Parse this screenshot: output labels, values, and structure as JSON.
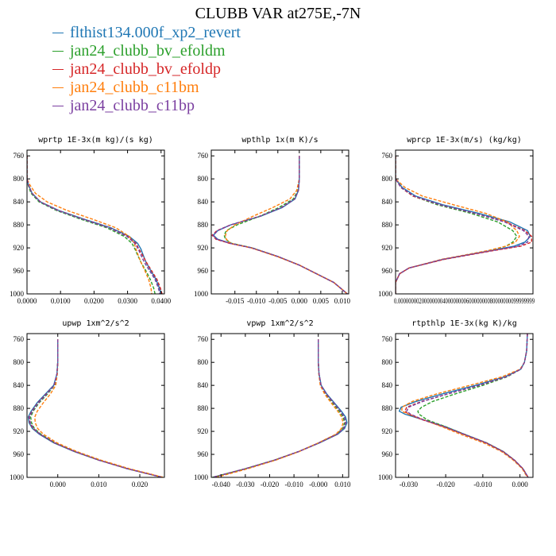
{
  "title": "CLUBB VAR at275E,-7N",
  "legend": [
    {
      "label": "flthist134.000f_xp2_revert",
      "color": "#1f77b4",
      "dash": "solid"
    },
    {
      "label": "jan24_clubb_bv_efoldm",
      "color": "#2ca02c",
      "dash": "dash"
    },
    {
      "label": "jan24_clubb_bv_efoldp",
      "color": "#d62728",
      "dash": "dash"
    },
    {
      "label": "jan24_clubb_c11bm",
      "color": "#ff7f0e",
      "dash": "dash"
    },
    {
      "label": "jan24_clubb_c11bp",
      "color": "#7b3fa0",
      "dash": "dash"
    }
  ],
  "chart_data": [
    {
      "type": "line",
      "title": "wprtp  1E-3x(m kg)/(s kg)",
      "xlim": [
        0,
        0.041
      ],
      "ylim": [
        1000,
        750
      ],
      "xticks": [
        "0.0000",
        "0.0100",
        "0.0200",
        "0.0300",
        "0.0400"
      ],
      "xtick_values": [
        0,
        0.01,
        0.02,
        0.03,
        0.04
      ],
      "yticks": [
        760,
        800,
        840,
        880,
        920,
        960,
        1000
      ],
      "y": [
        760,
        800,
        810,
        825,
        840,
        855,
        870,
        885,
        900,
        912,
        922,
        930,
        945,
        960,
        975,
        990,
        1000
      ],
      "series": [
        {
          "values": [
            0,
            0,
            0.0004,
            0.0015,
            0.004,
            0.0095,
            0.017,
            0.025,
            0.0305,
            0.033,
            0.034,
            0.0345,
            0.0355,
            0.037,
            0.0385,
            0.0395,
            0.04
          ]
        },
        {
          "values": [
            0,
            0,
            0.0003,
            0.0012,
            0.0036,
            0.0088,
            0.016,
            0.0238,
            0.029,
            0.0313,
            0.0322,
            0.0328,
            0.034,
            0.0355,
            0.0368,
            0.0378,
            0.0382
          ]
        },
        {
          "values": [
            0,
            0,
            0.0004,
            0.0015,
            0.004,
            0.0093,
            0.0167,
            0.0246,
            0.03,
            0.0325,
            0.0334,
            0.0342,
            0.0356,
            0.0372,
            0.0388,
            0.0398,
            0.0403
          ]
        },
        {
          "values": [
            0,
            0,
            0.0008,
            0.0025,
            0.006,
            0.012,
            0.0195,
            0.0265,
            0.0305,
            0.032,
            0.0325,
            0.033,
            0.034,
            0.0352,
            0.0363,
            0.037,
            0.0372
          ]
        },
        {
          "values": [
            0,
            0,
            0.0004,
            0.0015,
            0.0039,
            0.0092,
            0.0166,
            0.0245,
            0.0298,
            0.0322,
            0.0332,
            0.0338,
            0.035,
            0.0366,
            0.0382,
            0.0392,
            0.0396
          ]
        }
      ]
    },
    {
      "type": "line",
      "title": "wpthlp  1x(m K)/s",
      "xlim": [
        -0.0205,
        0.0115
      ],
      "ylim": [
        1000,
        750
      ],
      "xticks": [
        "-0.015",
        "-0.010",
        "-0.005",
        "0.000",
        "0.005",
        "0.010"
      ],
      "xtick_values": [
        -0.015,
        -0.01,
        -0.005,
        0,
        0.005,
        0.01
      ],
      "yticks": [
        760,
        800,
        840,
        880,
        920,
        960,
        1000
      ],
      "y": [
        760,
        800,
        820,
        835,
        850,
        865,
        880,
        890,
        898,
        905,
        912,
        920,
        935,
        950,
        965,
        980,
        1000
      ],
      "series": [
        {
          "values": [
            0,
            0,
            -0.0002,
            -0.001,
            -0.004,
            -0.009,
            -0.016,
            -0.019,
            -0.02,
            -0.019,
            -0.016,
            -0.011,
            -0.005,
            0,
            0.004,
            0.008,
            0.0112
          ]
        },
        {
          "values": [
            0,
            0,
            -0.0003,
            -0.0014,
            -0.0048,
            -0.0092,
            -0.0145,
            -0.017,
            -0.0175,
            -0.0172,
            -0.0158,
            -0.011,
            -0.005,
            0,
            0.004,
            0.008,
            0.0112
          ]
        },
        {
          "values": [
            0,
            0,
            -0.0002,
            -0.0011,
            -0.0042,
            -0.0092,
            -0.016,
            -0.0192,
            -0.0203,
            -0.0194,
            -0.0163,
            -0.0112,
            -0.005,
            0,
            0.004,
            0.008,
            0.0112
          ]
        },
        {
          "values": [
            0,
            0,
            -0.0006,
            -0.0022,
            -0.0062,
            -0.0108,
            -0.015,
            -0.0168,
            -0.0172,
            -0.017,
            -0.016,
            -0.0112,
            -0.0052,
            0,
            0.004,
            0.008,
            0.0112
          ]
        },
        {
          "values": [
            0,
            0,
            -0.0002,
            -0.0011,
            -0.0042,
            -0.0092,
            -0.016,
            -0.019,
            -0.0201,
            -0.0192,
            -0.0162,
            -0.0111,
            -0.005,
            0,
            0.004,
            0.008,
            0.0112
          ]
        }
      ]
    },
    {
      "type": "line",
      "title": "wprcp  1E-3x(m/s) (kg/kg)",
      "xlim": [
        0,
        1.02e-05
      ],
      "ylim": [
        1000,
        750
      ],
      "xticks": [
        "0.0000000020000000040000000060000000080000000099999999"
      ],
      "xtick_values": [
        0
      ],
      "yticks": [
        760,
        800,
        840,
        880,
        920,
        960,
        1000
      ],
      "y": [
        760,
        800,
        815,
        830,
        845,
        860,
        875,
        890,
        900,
        910,
        917,
        925,
        940,
        955,
        965,
        980,
        1000
      ],
      "series": [
        {
          "values": [
            0,
            0,
            5e-07,
            1.5e-06,
            3.5e-06,
            6.2e-06,
            8.5e-06,
            9.8e-06,
            1e-05,
            9.6e-06,
            8.8e-06,
            7e-06,
            3.5e-06,
            1e-06,
            3e-07,
            0,
            0
          ]
        },
        {
          "values": [
            0,
            0,
            4e-07,
            1.3e-06,
            3.1e-06,
            5.6e-06,
            7.6e-06,
            8.7e-06,
            9e-06,
            8.7e-06,
            8.2e-06,
            7e-06,
            3.5e-06,
            1e-06,
            3e-07,
            0,
            0
          ]
        },
        {
          "values": [
            0,
            0,
            4e-07,
            1.3e-06,
            3.3e-06,
            5.9e-06,
            8.2e-06,
            9.6e-06,
            1.01e-05,
            1.01e-05,
            9.3e-06,
            7.2e-06,
            3.6e-06,
            1e-06,
            3e-07,
            0,
            0
          ]
        },
        {
          "values": [
            0,
            0,
            7e-07,
            2e-06,
            4.3e-06,
            6.7e-06,
            8.3e-06,
            9e-06,
            9.2e-06,
            8.9e-06,
            8.2e-06,
            6.8e-06,
            3.4e-06,
            1e-06,
            3e-07,
            0,
            0
          ]
        },
        {
          "values": [
            0,
            0,
            4e-07,
            1.4e-06,
            3.3e-06,
            5.9e-06,
            8.1e-06,
            9.5e-06,
            9.9e-06,
            9.8e-06,
            9.1e-06,
            7.1e-06,
            3.5e-06,
            1e-06,
            3e-07,
            0,
            0
          ]
        }
      ]
    },
    {
      "type": "line",
      "title": "upwp  1xm^2/s^2",
      "xlim": [
        -0.0075,
        0.026
      ],
      "ylim": [
        1000,
        750
      ],
      "xticks": [
        "0.000",
        "0.010",
        "0.020"
      ],
      "xtick_values": [
        0,
        0.01,
        0.02
      ],
      "yticks": [
        760,
        800,
        840,
        880,
        920,
        960,
        1000
      ],
      "y": [
        760,
        800,
        820,
        840,
        855,
        870,
        885,
        895,
        905,
        915,
        925,
        940,
        955,
        970,
        985,
        1000
      ],
      "series": [
        {
          "values": [
            0,
            0,
            -0.0002,
            -0.001,
            -0.003,
            -0.005,
            -0.0065,
            -0.0072,
            -0.007,
            -0.0062,
            -0.0045,
            -0.001,
            0.004,
            0.01,
            0.017,
            0.0255
          ]
        },
        {
          "values": [
            0,
            0,
            -0.0002,
            -0.0008,
            -0.0025,
            -0.0045,
            -0.006,
            -0.0066,
            -0.0064,
            -0.0057,
            -0.0041,
            -0.0007,
            0.0042,
            0.0101,
            0.0171,
            0.0255
          ]
        },
        {
          "values": [
            0,
            0,
            -0.0002,
            -0.0009,
            -0.0028,
            -0.0048,
            -0.0063,
            -0.007,
            -0.0068,
            -0.006,
            -0.0043,
            -0.0008,
            0.0041,
            0.01,
            0.017,
            0.0255
          ]
        },
        {
          "values": [
            0,
            0,
            -0.0001,
            -0.0005,
            -0.0018,
            -0.0035,
            -0.005,
            -0.0056,
            -0.0055,
            -0.0049,
            -0.0035,
            -0.0002,
            0.0046,
            0.0105,
            0.0175,
            0.0258
          ]
        },
        {
          "values": [
            0,
            0,
            -0.0002,
            -0.0009,
            -0.0027,
            -0.0047,
            -0.0062,
            -0.0069,
            -0.0067,
            -0.0059,
            -0.0043,
            -0.0008,
            0.0041,
            0.01,
            0.017,
            0.0255
          ]
        }
      ]
    },
    {
      "type": "line",
      "title": "vpwp  1xm^2/s^2",
      "xlim": [
        -0.044,
        0.0125
      ],
      "ylim": [
        1000,
        750
      ],
      "xticks": [
        "-0.040",
        "-0.030",
        "-0.020",
        "-0.010",
        "-0.000",
        "0.010"
      ],
      "xtick_values": [
        -0.04,
        -0.03,
        -0.02,
        -0.01,
        0,
        0.01
      ],
      "yticks": [
        760,
        800,
        840,
        880,
        920,
        960,
        1000
      ],
      "y": [
        760,
        800,
        820,
        840,
        855,
        870,
        885,
        895,
        905,
        915,
        925,
        940,
        955,
        970,
        985,
        1000
      ],
      "series": [
        {
          "values": [
            0,
            0,
            0.0003,
            0.0012,
            0.0035,
            0.0065,
            0.0095,
            0.0112,
            0.0118,
            0.0108,
            0.008,
            0.0005,
            -0.008,
            -0.018,
            -0.03,
            -0.0435
          ]
        },
        {
          "values": [
            0,
            0,
            0.0003,
            0.001,
            0.003,
            0.0058,
            0.0086,
            0.0102,
            0.0108,
            0.01,
            0.0075,
            0.0002,
            -0.008,
            -0.018,
            -0.03,
            -0.0435
          ]
        },
        {
          "values": [
            0,
            0,
            0.0003,
            0.0011,
            0.0033,
            0.0062,
            0.0091,
            0.0107,
            0.0113,
            0.0104,
            0.0077,
            0.0003,
            -0.008,
            -0.018,
            -0.03,
            -0.0435
          ]
        },
        {
          "values": [
            0,
            0,
            0.0002,
            0.0008,
            0.0026,
            0.0052,
            0.008,
            0.0096,
            0.0102,
            0.0095,
            0.0072,
            0.0,
            -0.0078,
            -0.0175,
            -0.029,
            -0.042
          ]
        },
        {
          "values": [
            0,
            0,
            0.0003,
            0.0011,
            0.0033,
            0.0062,
            0.0091,
            0.0107,
            0.0112,
            0.0104,
            0.0077,
            0.0003,
            -0.008,
            -0.018,
            -0.03,
            -0.0435
          ]
        }
      ]
    },
    {
      "type": "line",
      "title": "rtpthlp  1E-3x(kg K)/kg",
      "xlim": [
        -0.0335,
        0.0035
      ],
      "ylim": [
        1000,
        750
      ],
      "xticks": [
        "-0.030",
        "-0.020",
        "-0.010",
        "0.000"
      ],
      "xtick_values": [
        -0.03,
        -0.02,
        -0.01,
        0
      ],
      "yticks": [
        760,
        800,
        840,
        880,
        920,
        960,
        1000
      ],
      "y": [
        750,
        780,
        800,
        812,
        825,
        840,
        855,
        868,
        878,
        885,
        890,
        900,
        912,
        925,
        940,
        955,
        970,
        985,
        1000
      ],
      "series": [
        {
          "values": [
            0.002,
            0.0018,
            0.0012,
            0.0002,
            -0.004,
            -0.012,
            -0.021,
            -0.028,
            -0.032,
            -0.0325,
            -0.031,
            -0.026,
            -0.02,
            -0.015,
            -0.009,
            -0.0045,
            -0.0015,
            0.0008,
            0.0022
          ]
        },
        {
          "values": [
            0.002,
            0.0018,
            0.0012,
            0.0002,
            -0.0034,
            -0.01,
            -0.0175,
            -0.0235,
            -0.0265,
            -0.0275,
            -0.0272,
            -0.025,
            -0.02,
            -0.015,
            -0.009,
            -0.0045,
            -0.0015,
            0.0008,
            0.0022
          ]
        },
        {
          "values": [
            0.002,
            0.0018,
            0.0012,
            0.0002,
            -0.0037,
            -0.011,
            -0.0195,
            -0.0265,
            -0.0305,
            -0.031,
            -0.03,
            -0.0262,
            -0.0205,
            -0.0152,
            -0.0091,
            -0.0046,
            -0.0015,
            0.0008,
            0.0022
          ]
        },
        {
          "values": [
            0.002,
            0.0018,
            0.0012,
            0.0,
            -0.0048,
            -0.0135,
            -0.0225,
            -0.029,
            -0.0318,
            -0.0318,
            -0.03,
            -0.0258,
            -0.021,
            -0.016,
            -0.0098,
            -0.005,
            -0.0018,
            0.0006,
            0.002
          ]
        },
        {
          "values": [
            0.002,
            0.0018,
            0.0012,
            0.0002,
            -0.0037,
            -0.011,
            -0.0195,
            -0.0262,
            -0.03,
            -0.0305,
            -0.0295,
            -0.026,
            -0.0203,
            -0.0151,
            -0.0091,
            -0.0046,
            -0.0015,
            0.0008,
            0.0022
          ]
        }
      ]
    }
  ]
}
